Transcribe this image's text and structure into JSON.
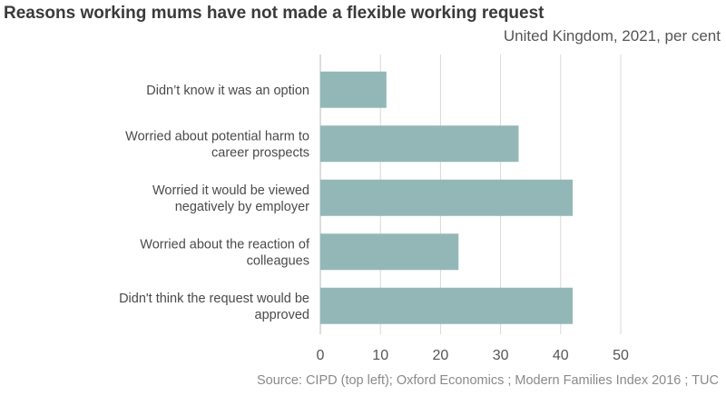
{
  "title": "Reasons working mums have not made a flexible working request",
  "subtitle": "United Kingdom, 2021, per cent",
  "source": "Source: CIPD (top left); Oxford Economics ; Modern Families Index 2016 ; TUC",
  "colors": {
    "bar": "#93b7b7",
    "grid": "#d9d9d9"
  },
  "chart_data": {
    "type": "bar",
    "orientation": "horizontal",
    "categories": [
      [
        "Didn’t know it was an option"
      ],
      [
        "Worried about potential harm to",
        "career prospects"
      ],
      [
        "Worried it would be viewed",
        "negatively by employer"
      ],
      [
        "Worried about the reaction of",
        "colleagues"
      ],
      [
        "Didn't think the request would be",
        "approved"
      ]
    ],
    "values": [
      11,
      33,
      42,
      23,
      42
    ],
    "xlim": [
      0,
      50
    ],
    "xticks": [
      0,
      10,
      20,
      30,
      40,
      50
    ],
    "grid": true
  }
}
